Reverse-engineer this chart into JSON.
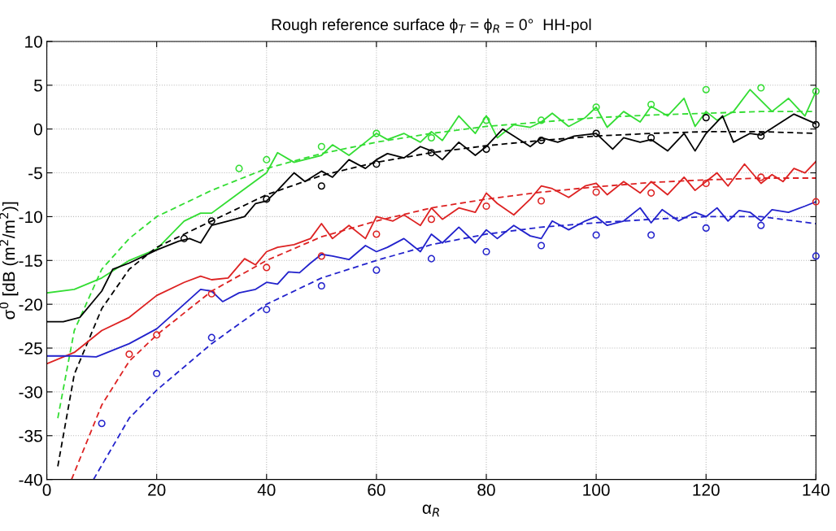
{
  "chart_data": {
    "type": "line",
    "title": "Rough reference surface ϕ$_{T}$ = ϕ$_{R}$ = 0°  HH-pol",
    "xlabel": "α$_{R}$",
    "ylabel": "σ$^{0}$ [dB (m$^{2}$/m$^{2}$)]",
    "xlim": [
      0,
      140
    ],
    "xticks": [
      0,
      20,
      40,
      60,
      80,
      100,
      120,
      140
    ],
    "ylim": [
      -40,
      10
    ],
    "yticks": [
      -40,
      -35,
      -30,
      -25,
      -20,
      -15,
      -10,
      -5,
      0,
      5,
      10
    ],
    "grid": true,
    "legend": false,
    "series": [
      {
        "line_style": "solid",
        "marker": "none",
        "color": "#33dd33",
        "x": [
          0,
          5,
          10,
          15,
          20,
          25,
          28,
          30,
          35,
          40,
          42,
          45,
          50,
          52,
          55,
          58,
          60,
          62,
          65,
          68,
          70,
          72,
          75,
          78,
          80,
          82,
          85,
          88,
          90,
          92,
          95,
          98,
          100,
          102,
          105,
          108,
          110,
          113,
          116,
          118,
          120,
          122,
          125,
          128,
          132,
          135,
          138,
          140
        ],
        "values": [
          -18.7,
          -18.3,
          -17,
          -15,
          -13.7,
          -10.5,
          -9.6,
          -9.6,
          -7.3,
          -5,
          -2.7,
          -3.8,
          -3,
          -1.8,
          -3,
          -1.5,
          -0.5,
          -1.2,
          -0.5,
          -1.5,
          -0.3,
          -1.3,
          1.5,
          -0.5,
          1.5,
          -1,
          0.5,
          0.2,
          0.8,
          1.8,
          0.3,
          1.3,
          2.5,
          0.2,
          2,
          0.8,
          2.6,
          1.5,
          3.5,
          0.3,
          2,
          1,
          2,
          4.5,
          2,
          3.5,
          1.5,
          4.3
        ]
      },
      {
        "line_style": "dashed",
        "marker": "none",
        "color": "#33dd33",
        "x": [
          2,
          5,
          10,
          15,
          20,
          25,
          30,
          40,
          50,
          60,
          70,
          80,
          90,
          100,
          110,
          120,
          130,
          140
        ],
        "values": [
          -33,
          -23,
          -16,
          -12.5,
          -10,
          -8.5,
          -7,
          -4.5,
          -2.8,
          -1.5,
          -0.5,
          0.3,
          0.8,
          1.3,
          1.6,
          1.8,
          2,
          2
        ]
      },
      {
        "type": "scatter",
        "marker": "circle",
        "color": "#33dd33",
        "x": [
          35,
          40,
          50,
          60,
          70,
          80,
          90,
          100,
          110,
          120,
          130,
          140
        ],
        "values": [
          -4.5,
          -3.5,
          -2,
          -0.5,
          -1,
          1,
          1,
          2.5,
          2.8,
          4.5,
          4.7,
          4.3
        ]
      },
      {
        "line_style": "solid",
        "marker": "none",
        "color": "#000000",
        "x": [
          0,
          3,
          6,
          10,
          12,
          15,
          20,
          24,
          26,
          28,
          30,
          33,
          36,
          38,
          40,
          42,
          45,
          47,
          50,
          52,
          55,
          58,
          60,
          62,
          65,
          68,
          70,
          72,
          75,
          78,
          80,
          83,
          85,
          88,
          90,
          93,
          96,
          100,
          103,
          105,
          108,
          110,
          113,
          116,
          118,
          120,
          123,
          125,
          128,
          130,
          133,
          136,
          140
        ],
        "values": [
          -22,
          -22,
          -21.5,
          -18.5,
          -16,
          -15.3,
          -13.8,
          -12.8,
          -12.5,
          -13,
          -11,
          -10.5,
          -10,
          -8.5,
          -8.2,
          -7,
          -5,
          -6,
          -4.8,
          -5.5,
          -3.5,
          -4.5,
          -3.5,
          -2.8,
          -3.3,
          -2,
          -2.5,
          -3.5,
          -1.5,
          -3,
          -2,
          0,
          -0.8,
          -2,
          -1,
          -1.5,
          -0.8,
          -0.5,
          -2.3,
          -1,
          -1.5,
          -1.2,
          -2.5,
          -0.5,
          -2.5,
          -0.5,
          1.5,
          -1.5,
          -0.5,
          -0.7,
          0.5,
          1.7,
          0.6
        ]
      },
      {
        "line_style": "dashed",
        "marker": "none",
        "color": "#000000",
        "x": [
          2,
          5,
          10,
          15,
          20,
          25,
          30,
          40,
          50,
          60,
          70,
          80,
          90,
          100,
          110,
          120,
          130,
          140
        ],
        "values": [
          -38.5,
          -28,
          -20.5,
          -16,
          -13.5,
          -12,
          -10.5,
          -7.5,
          -5.3,
          -3.8,
          -2.7,
          -1.9,
          -1.3,
          -0.8,
          -0.5,
          -0.3,
          -0.3,
          -0.5
        ]
      },
      {
        "type": "scatter",
        "marker": "circle",
        "color": "#000000",
        "x": [
          25,
          30,
          40,
          50,
          60,
          70,
          80,
          90,
          100,
          110,
          120,
          130,
          140
        ],
        "values": [
          -12.5,
          -10.5,
          -8,
          -6.5,
          -4,
          -2.7,
          -2.3,
          -1.3,
          -0.5,
          -1,
          1.3,
          -0.8,
          0.5
        ]
      },
      {
        "line_style": "solid",
        "marker": "none",
        "color": "#dd2222",
        "x": [
          0,
          5,
          10,
          15,
          20,
          25,
          28,
          30,
          33,
          36,
          38,
          40,
          42,
          45,
          48,
          50,
          52,
          55,
          58,
          60,
          63,
          65,
          68,
          70,
          72,
          75,
          78,
          80,
          82,
          85,
          88,
          90,
          92,
          95,
          98,
          100,
          102,
          105,
          108,
          110,
          113,
          116,
          118,
          120,
          122,
          124,
          127,
          130,
          132,
          134,
          136,
          138,
          140
        ],
        "values": [
          -26.8,
          -25.5,
          -23,
          -21.5,
          -19,
          -17.5,
          -16.8,
          -17.2,
          -17,
          -14.8,
          -15.5,
          -14,
          -13.5,
          -13.2,
          -12.5,
          -10.8,
          -12.5,
          -11,
          -12.5,
          -10,
          -10.5,
          -9.8,
          -11,
          -9,
          -10.3,
          -9,
          -9.5,
          -7.3,
          -8.5,
          -9.8,
          -8,
          -6.5,
          -6.8,
          -7.8,
          -6.5,
          -6.2,
          -7.5,
          -6,
          -7.3,
          -6,
          -7.5,
          -5.5,
          -7,
          -6,
          -5,
          -6.5,
          -4,
          -6.2,
          -5.2,
          -6,
          -4.5,
          -5,
          -3.7
        ]
      },
      {
        "line_style": "dashed",
        "marker": "none",
        "color": "#dd2222",
        "x": [
          4.5,
          10,
          15,
          20,
          30,
          40,
          50,
          60,
          70,
          80,
          90,
          100,
          110,
          120,
          130,
          140
        ],
        "values": [
          -40,
          -31.5,
          -26.5,
          -23.5,
          -18.5,
          -15,
          -12.3,
          -10.5,
          -9,
          -8,
          -7.2,
          -6.6,
          -6.1,
          -5.8,
          -5.6,
          -5.6
        ]
      },
      {
        "type": "scatter",
        "marker": "circle",
        "color": "#dd2222",
        "x": [
          15,
          20,
          30,
          40,
          50,
          60,
          70,
          80,
          90,
          100,
          110,
          120,
          130,
          140
        ],
        "values": [
          -25.7,
          -23.5,
          -18.8,
          -15.8,
          -14.5,
          -12,
          -10.3,
          -8.8,
          -8.2,
          -7.2,
          -7.3,
          -6.2,
          -5.5,
          -8.3
        ]
      },
      {
        "line_style": "solid",
        "marker": "none",
        "color": "#2222cc",
        "x": [
          0,
          5,
          9,
          15,
          20,
          25,
          28,
          30,
          32,
          35,
          38,
          40,
          42,
          44,
          46,
          48,
          50,
          52,
          55,
          58,
          60,
          62,
          65,
          68,
          70,
          72,
          75,
          78,
          80,
          82,
          85,
          88,
          90,
          92,
          95,
          98,
          100,
          102,
          105,
          108,
          110,
          112,
          115,
          118,
          120,
          122,
          124,
          126,
          128,
          130,
          132,
          135,
          138,
          140
        ],
        "values": [
          -25.9,
          -25.9,
          -26,
          -24.5,
          -22.8,
          -20,
          -18.3,
          -18.5,
          -19.7,
          -18.7,
          -18.3,
          -17.5,
          -17.7,
          -16.3,
          -16.4,
          -15.3,
          -14.3,
          -14.5,
          -14.9,
          -13.3,
          -14,
          -13.5,
          -12.5,
          -14,
          -12,
          -13,
          -11.2,
          -13,
          -11.5,
          -12.5,
          -11,
          -12.2,
          -12.5,
          -10.5,
          -11.5,
          -10.5,
          -10,
          -11,
          -10.5,
          -9,
          -10.7,
          -9.2,
          -10.5,
          -9.5,
          -10,
          -9,
          -10.5,
          -9.3,
          -9.5,
          -10.5,
          -9.2,
          -9.5,
          -8.8,
          -8.3
        ]
      },
      {
        "line_style": "dashed",
        "marker": "none",
        "color": "#2222cc",
        "x": [
          8.5,
          15,
          20,
          30,
          40,
          50,
          60,
          70,
          80,
          90,
          100,
          110,
          120,
          130,
          140
        ],
        "values": [
          -40,
          -33,
          -29.8,
          -24.5,
          -20,
          -17,
          -15,
          -13.2,
          -12,
          -11.2,
          -10.7,
          -10.3,
          -10,
          -10,
          -10.8
        ]
      },
      {
        "type": "scatter",
        "marker": "circle",
        "color": "#2222cc",
        "x": [
          10,
          20,
          30,
          40,
          50,
          60,
          70,
          80,
          90,
          100,
          110,
          120,
          130,
          140
        ],
        "values": [
          -33.6,
          -27.9,
          -23.8,
          -20.6,
          -17.9,
          -16.1,
          -14.8,
          -14,
          -13.3,
          -12.1,
          -12.1,
          -11.3,
          -11,
          -14.5
        ]
      }
    ]
  }
}
